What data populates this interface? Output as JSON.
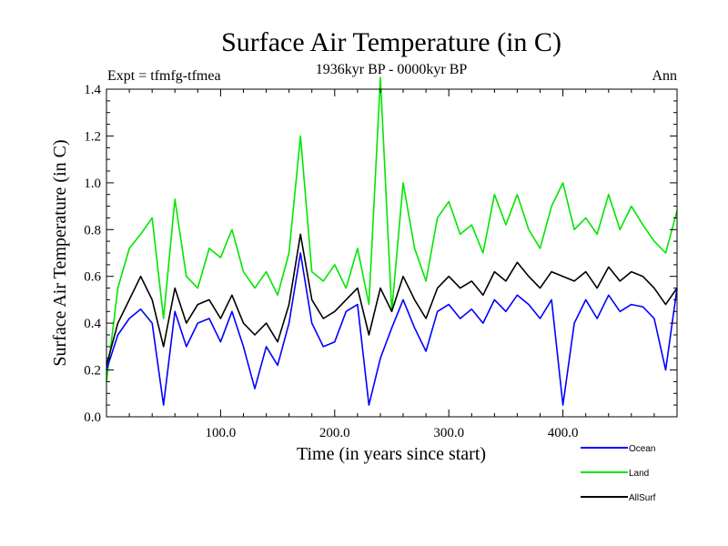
{
  "chart_data": {
    "type": "line",
    "title": "Surface Air Temperature (in C)",
    "subtitle": "1936kyr BP - 0000kyr BP",
    "experiment_label": "Expt = tfmfg-tfmea",
    "season_label": "Ann",
    "xlabel": "Time (in years since start)",
    "ylabel": "Surface Air Temperature (in C)",
    "xlim": [
      0,
      500
    ],
    "ylim": [
      0.0,
      1.4
    ],
    "x_ticks": [
      100,
      200,
      300,
      400
    ],
    "x_tick_labels": [
      "100.0",
      "200.0",
      "300.0",
      "400.0"
    ],
    "y_ticks": [
      0.0,
      0.2,
      0.4,
      0.6,
      0.8,
      1.0,
      1.2,
      1.4
    ],
    "y_tick_labels": [
      "0.0",
      "0.2",
      "0.4",
      "0.6",
      "0.8",
      "1.0",
      "1.2",
      "1.4"
    ],
    "legend_position": "bottom-right",
    "x": [
      0,
      10,
      20,
      30,
      40,
      50,
      60,
      70,
      80,
      90,
      100,
      110,
      120,
      130,
      140,
      150,
      160,
      170,
      180,
      190,
      200,
      210,
      220,
      230,
      240,
      250,
      260,
      270,
      280,
      290,
      300,
      310,
      320,
      330,
      340,
      350,
      360,
      370,
      380,
      390,
      400,
      410,
      420,
      430,
      440,
      450,
      460,
      470,
      480,
      490,
      500
    ],
    "series": [
      {
        "name": "Land",
        "color": "#00e600",
        "values": [
          0.15,
          0.55,
          0.72,
          0.78,
          0.85,
          0.42,
          0.93,
          0.6,
          0.55,
          0.72,
          0.68,
          0.8,
          0.62,
          0.55,
          0.62,
          0.52,
          0.7,
          1.2,
          0.62,
          0.58,
          0.65,
          0.55,
          0.72,
          0.48,
          1.45,
          0.45,
          1.0,
          0.72,
          0.58,
          0.85,
          0.92,
          0.78,
          0.82,
          0.7,
          0.95,
          0.82,
          0.95,
          0.8,
          0.72,
          0.9,
          1.0,
          0.8,
          0.85,
          0.78,
          0.95,
          0.8,
          0.9,
          0.82,
          0.75,
          0.7,
          0.88
        ]
      },
      {
        "name": "AllSurf",
        "color": "#000000",
        "values": [
          0.22,
          0.4,
          0.5,
          0.6,
          0.5,
          0.3,
          0.55,
          0.4,
          0.48,
          0.5,
          0.42,
          0.52,
          0.4,
          0.35,
          0.4,
          0.32,
          0.48,
          0.78,
          0.5,
          0.42,
          0.45,
          0.5,
          0.55,
          0.35,
          0.55,
          0.45,
          0.6,
          0.5,
          0.42,
          0.55,
          0.6,
          0.55,
          0.58,
          0.52,
          0.62,
          0.58,
          0.66,
          0.6,
          0.55,
          0.62,
          0.6,
          0.58,
          0.62,
          0.55,
          0.64,
          0.58,
          0.62,
          0.6,
          0.55,
          0.48,
          0.55
        ]
      },
      {
        "name": "Ocean",
        "color": "#0000ff",
        "values": [
          0.2,
          0.35,
          0.42,
          0.46,
          0.4,
          0.05,
          0.45,
          0.3,
          0.4,
          0.42,
          0.32,
          0.45,
          0.3,
          0.12,
          0.3,
          0.22,
          0.4,
          0.7,
          0.4,
          0.3,
          0.32,
          0.45,
          0.48,
          0.05,
          0.25,
          0.38,
          0.5,
          0.38,
          0.28,
          0.45,
          0.48,
          0.42,
          0.46,
          0.4,
          0.5,
          0.45,
          0.52,
          0.48,
          0.42,
          0.5,
          0.05,
          0.4,
          0.5,
          0.42,
          0.52,
          0.45,
          0.48,
          0.47,
          0.42,
          0.2,
          0.55
        ]
      }
    ],
    "legend_order": [
      "Ocean",
      "Land",
      "AllSurf"
    ]
  }
}
